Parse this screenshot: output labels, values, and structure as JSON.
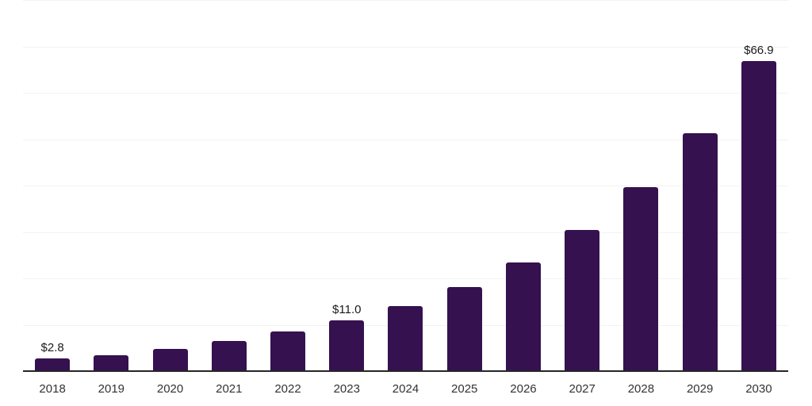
{
  "chart_data": {
    "type": "bar",
    "title": "",
    "xlabel": "",
    "ylabel": "",
    "categories": [
      "2018",
      "2019",
      "2020",
      "2021",
      "2022",
      "2023",
      "2024",
      "2025",
      "2026",
      "2027",
      "2028",
      "2029",
      "2030"
    ],
    "values": [
      2.8,
      3.5,
      4.8,
      6.5,
      8.5,
      11.0,
      14.1,
      18.1,
      23.4,
      30.5,
      39.7,
      51.3,
      66.9
    ],
    "bar_labels": [
      "$2.8",
      "",
      "",
      "",
      "",
      "$11.0",
      "",
      "",
      "",
      "",
      "",
      "",
      "$66.9"
    ],
    "ylim": [
      0,
      80
    ],
    "gridline_step": 10,
    "grid": true,
    "legend": false,
    "y_tick_labels_visible": false,
    "colors": {
      "bar": "#351150",
      "axis_line": "#262626",
      "gridline": "#f2f2f2",
      "bar_label_text": "#1a1a1a",
      "x_tick_text": "#333333",
      "background": "#ffffff"
    }
  }
}
